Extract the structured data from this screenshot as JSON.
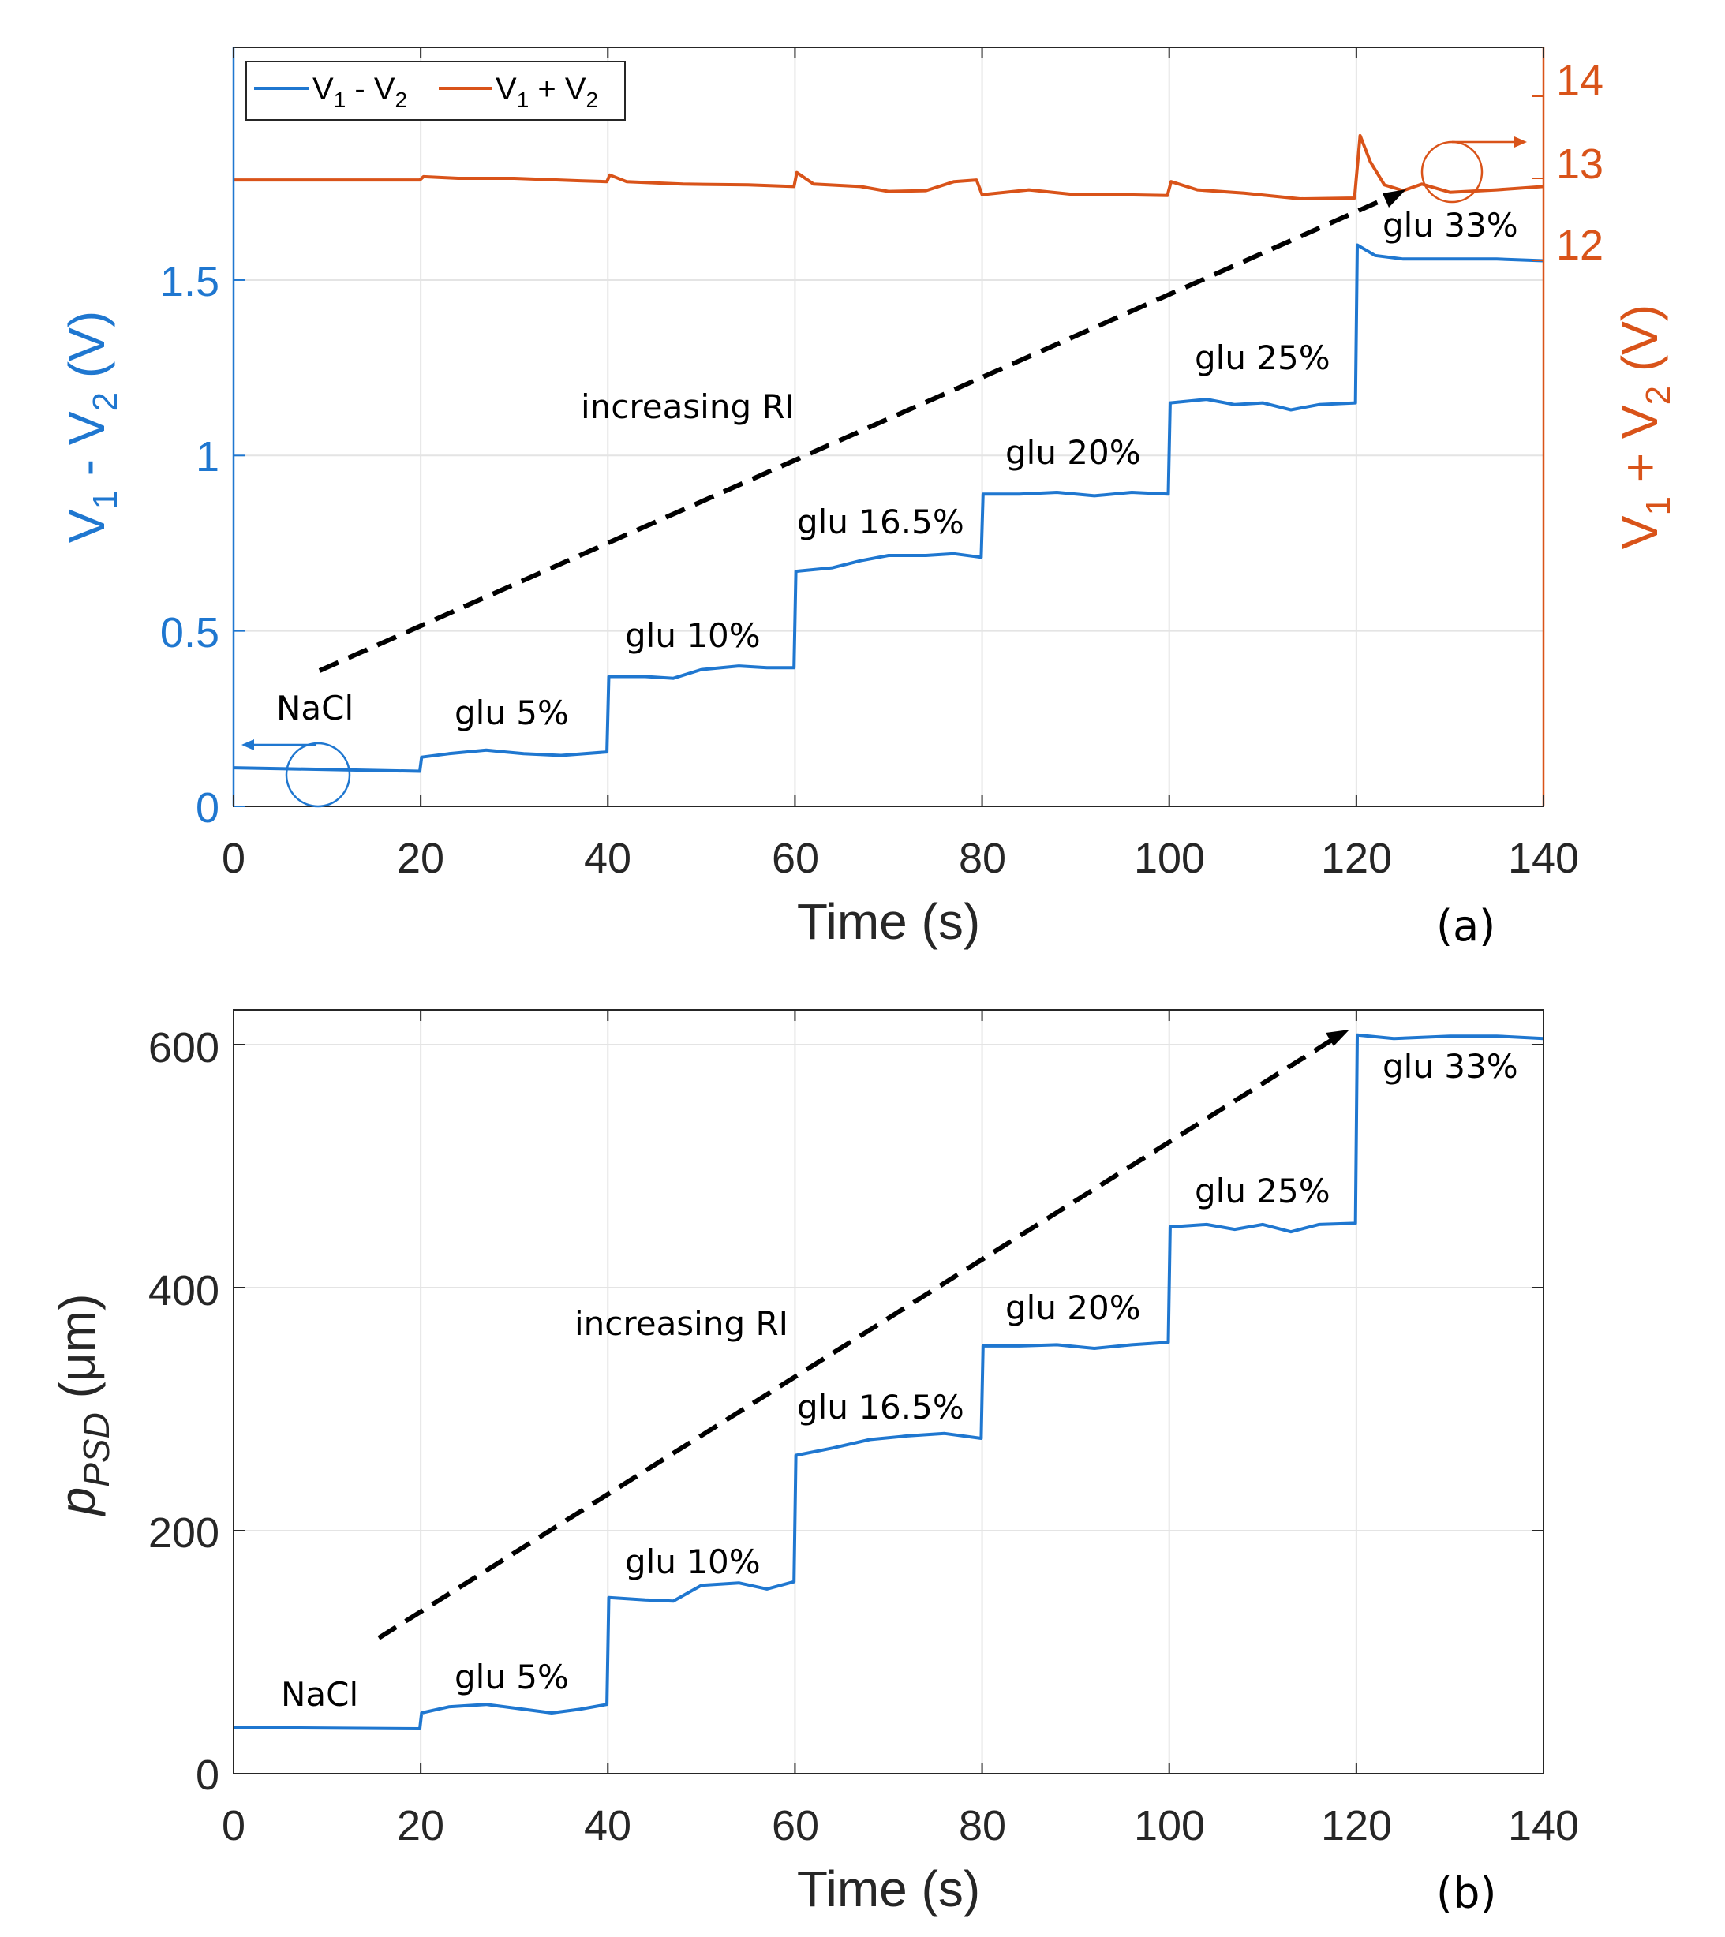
{
  "colors": {
    "blue": "#1f77d0",
    "orange": "#d95319",
    "grid": "#e4e4e4",
    "axis": "#262626"
  },
  "legend": {
    "items": [
      {
        "base": "V",
        "s1": "1",
        "op": " - ",
        "base2": "V",
        "s2": "2"
      },
      {
        "base": "V",
        "s1": "1",
        "op": " + ",
        "base2": "V",
        "s2": "2"
      }
    ]
  },
  "chart_data": [
    {
      "type": "line",
      "panel_label": "(a)",
      "xlabel": "Time (s)",
      "ylabel_left": {
        "base": "V",
        "s1": "1",
        "op": " - ",
        "base2": "V",
        "s2": "2",
        "unit": " (V)"
      },
      "ylabel_right": {
        "base": "V",
        "s1": "1",
        "op": " + ",
        "base2": "V",
        "s2": "2",
        "unit": " (V)"
      },
      "xlim": [
        0,
        140
      ],
      "ylim_left": [
        0,
        1.5
      ],
      "ylim_right": [
        8.5,
        14.5
      ],
      "x_ticks": [
        "0",
        "20",
        "40",
        "60",
        "80",
        "100",
        "120",
        "140"
      ],
      "y_ticks_left": [
        "0",
        "0.5",
        "1",
        "1.5"
      ],
      "y_ticks_right": [
        "12",
        "13",
        "14"
      ],
      "grid": true,
      "legend_position": "top-left",
      "series": [
        {
          "name_ref": 0,
          "axis": "left",
          "points": [
            [
              0,
              0.11
            ],
            [
              19.9,
              0.1
            ],
            [
              20.1,
              0.14
            ],
            [
              23,
              0.15
            ],
            [
              27,
              0.16
            ],
            [
              31,
              0.15
            ],
            [
              35,
              0.145
            ],
            [
              39.9,
              0.155
            ],
            [
              40.1,
              0.37
            ],
            [
              44,
              0.37
            ],
            [
              47,
              0.365
            ],
            [
              50,
              0.39
            ],
            [
              54,
              0.4
            ],
            [
              57,
              0.395
            ],
            [
              59.9,
              0.395
            ],
            [
              60.1,
              0.67
            ],
            [
              64,
              0.68
            ],
            [
              67,
              0.7
            ],
            [
              70,
              0.715
            ],
            [
              74,
              0.715
            ],
            [
              77,
              0.72
            ],
            [
              79.9,
              0.71
            ],
            [
              80.1,
              0.89
            ],
            [
              84,
              0.89
            ],
            [
              88,
              0.895
            ],
            [
              92,
              0.885
            ],
            [
              96,
              0.895
            ],
            [
              99.9,
              0.89
            ],
            [
              100.1,
              1.15
            ],
            [
              104,
              1.16
            ],
            [
              107,
              1.145
            ],
            [
              110,
              1.15
            ],
            [
              113,
              1.13
            ],
            [
              116,
              1.145
            ],
            [
              119.9,
              1.15
            ],
            [
              120.1,
              1.6
            ],
            [
              122,
              1.57
            ],
            [
              125,
              1.56
            ],
            [
              130,
              1.56
            ],
            [
              135,
              1.56
            ],
            [
              140,
              1.555
            ]
          ]
        },
        {
          "name_ref": 1,
          "axis": "right",
          "points": [
            [
              0,
              12.98
            ],
            [
              19.9,
              12.98
            ],
            [
              20.3,
              13.02
            ],
            [
              24,
              13.0
            ],
            [
              30,
              13.0
            ],
            [
              37,
              12.97
            ],
            [
              39.9,
              12.96
            ],
            [
              40.2,
              13.04
            ],
            [
              42,
              12.96
            ],
            [
              48,
              12.93
            ],
            [
              55,
              12.92
            ],
            [
              59.9,
              12.9
            ],
            [
              60.2,
              13.07
            ],
            [
              62,
              12.93
            ],
            [
              67,
              12.9
            ],
            [
              70,
              12.84
            ],
            [
              74,
              12.85
            ],
            [
              77,
              12.96
            ],
            [
              79.4,
              12.98
            ],
            [
              80,
              12.8
            ],
            [
              85,
              12.86
            ],
            [
              90,
              12.8
            ],
            [
              95,
              12.8
            ],
            [
              99.8,
              12.79
            ],
            [
              100.2,
              12.96
            ],
            [
              103,
              12.86
            ],
            [
              108,
              12.82
            ],
            [
              114,
              12.75
            ],
            [
              119.8,
              12.76
            ],
            [
              120.4,
              13.52
            ],
            [
              121.5,
              13.2
            ],
            [
              123,
              12.92
            ],
            [
              125,
              12.85
            ],
            [
              127,
              12.93
            ],
            [
              130,
              12.83
            ],
            [
              135,
              12.86
            ],
            [
              140,
              12.9
            ]
          ]
        }
      ],
      "annotations": [
        "NaCl",
        "glu 5%",
        "glu 10%",
        "glu 16.5%",
        "glu 20%",
        "glu 25%",
        "glu 33%",
        "increasing RI"
      ]
    },
    {
      "type": "line",
      "panel_label": "(b)",
      "xlabel": "Time (s)",
      "ylabel": {
        "base": "p",
        "sub": "PSD",
        "unit": " (μm)"
      },
      "xlim": [
        0,
        140
      ],
      "ylim": [
        0,
        600
      ],
      "x_ticks": [
        "0",
        "20",
        "40",
        "60",
        "80",
        "100",
        "120",
        "140"
      ],
      "y_ticks": [
        "0",
        "200",
        "400",
        "600"
      ],
      "grid": true,
      "series": [
        {
          "points": [
            [
              0,
              38
            ],
            [
              19.9,
              37
            ],
            [
              20.1,
              50
            ],
            [
              23,
              55
            ],
            [
              27,
              57
            ],
            [
              31,
              53
            ],
            [
              34,
              50
            ],
            [
              37,
              53
            ],
            [
              39.9,
              57
            ],
            [
              40.1,
              145
            ],
            [
              44,
              143
            ],
            [
              47,
              142
            ],
            [
              50,
              155
            ],
            [
              54,
              157
            ],
            [
              57,
              152
            ],
            [
              59.9,
              158
            ],
            [
              60.1,
              262
            ],
            [
              64,
              268
            ],
            [
              68,
              275
            ],
            [
              72,
              278
            ],
            [
              76,
              280
            ],
            [
              79.9,
              276
            ],
            [
              80.1,
              352
            ],
            [
              84,
              352
            ],
            [
              88,
              353
            ],
            [
              92,
              350
            ],
            [
              96,
              353
            ],
            [
              99.9,
              355
            ],
            [
              100.1,
              450
            ],
            [
              104,
              452
            ],
            [
              107,
              448
            ],
            [
              110,
              452
            ],
            [
              113,
              446
            ],
            [
              116,
              452
            ],
            [
              119.9,
              453
            ],
            [
              120.1,
              608
            ],
            [
              124,
              605
            ],
            [
              130,
              607
            ],
            [
              135,
              607
            ],
            [
              140,
              605
            ]
          ]
        }
      ],
      "annotations": [
        "NaCl",
        "glu 5%",
        "glu 10%",
        "glu 16.5%",
        "glu 20%",
        "glu 25%",
        "glu 33%",
        "increasing RI"
      ]
    }
  ]
}
